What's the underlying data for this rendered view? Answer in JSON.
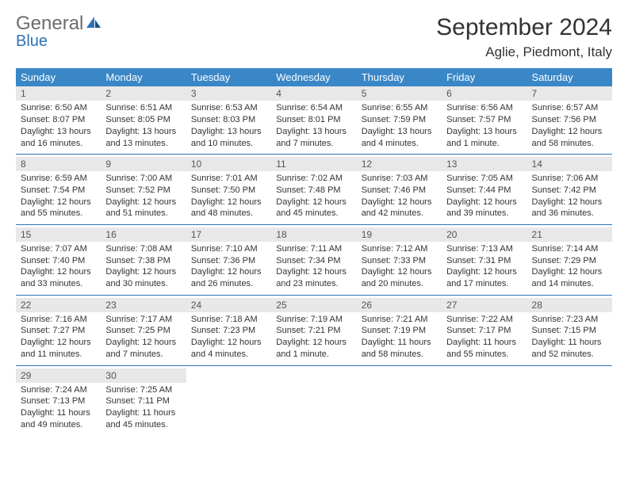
{
  "brand": {
    "general": "General",
    "blue": "Blue"
  },
  "header": {
    "month_title": "September 2024",
    "location": "Aglie, Piedmont, Italy"
  },
  "colors": {
    "header_bg": "#3a87c7",
    "header_fg": "#ffffff",
    "daynum_bg": "#e8e8e8",
    "rule": "#2d72b8",
    "logo_gray": "#6b6b6b",
    "logo_blue": "#2d72b8"
  },
  "weekdays": [
    "Sunday",
    "Monday",
    "Tuesday",
    "Wednesday",
    "Thursday",
    "Friday",
    "Saturday"
  ],
  "weeks": [
    [
      {
        "n": "1",
        "sr": "Sunrise: 6:50 AM",
        "ss": "Sunset: 8:07 PM",
        "d1": "Daylight: 13 hours",
        "d2": "and 16 minutes."
      },
      {
        "n": "2",
        "sr": "Sunrise: 6:51 AM",
        "ss": "Sunset: 8:05 PM",
        "d1": "Daylight: 13 hours",
        "d2": "and 13 minutes."
      },
      {
        "n": "3",
        "sr": "Sunrise: 6:53 AM",
        "ss": "Sunset: 8:03 PM",
        "d1": "Daylight: 13 hours",
        "d2": "and 10 minutes."
      },
      {
        "n": "4",
        "sr": "Sunrise: 6:54 AM",
        "ss": "Sunset: 8:01 PM",
        "d1": "Daylight: 13 hours",
        "d2": "and 7 minutes."
      },
      {
        "n": "5",
        "sr": "Sunrise: 6:55 AM",
        "ss": "Sunset: 7:59 PM",
        "d1": "Daylight: 13 hours",
        "d2": "and 4 minutes."
      },
      {
        "n": "6",
        "sr": "Sunrise: 6:56 AM",
        "ss": "Sunset: 7:57 PM",
        "d1": "Daylight: 13 hours",
        "d2": "and 1 minute."
      },
      {
        "n": "7",
        "sr": "Sunrise: 6:57 AM",
        "ss": "Sunset: 7:56 PM",
        "d1": "Daylight: 12 hours",
        "d2": "and 58 minutes."
      }
    ],
    [
      {
        "n": "8",
        "sr": "Sunrise: 6:59 AM",
        "ss": "Sunset: 7:54 PM",
        "d1": "Daylight: 12 hours",
        "d2": "and 55 minutes."
      },
      {
        "n": "9",
        "sr": "Sunrise: 7:00 AM",
        "ss": "Sunset: 7:52 PM",
        "d1": "Daylight: 12 hours",
        "d2": "and 51 minutes."
      },
      {
        "n": "10",
        "sr": "Sunrise: 7:01 AM",
        "ss": "Sunset: 7:50 PM",
        "d1": "Daylight: 12 hours",
        "d2": "and 48 minutes."
      },
      {
        "n": "11",
        "sr": "Sunrise: 7:02 AM",
        "ss": "Sunset: 7:48 PM",
        "d1": "Daylight: 12 hours",
        "d2": "and 45 minutes."
      },
      {
        "n": "12",
        "sr": "Sunrise: 7:03 AM",
        "ss": "Sunset: 7:46 PM",
        "d1": "Daylight: 12 hours",
        "d2": "and 42 minutes."
      },
      {
        "n": "13",
        "sr": "Sunrise: 7:05 AM",
        "ss": "Sunset: 7:44 PM",
        "d1": "Daylight: 12 hours",
        "d2": "and 39 minutes."
      },
      {
        "n": "14",
        "sr": "Sunrise: 7:06 AM",
        "ss": "Sunset: 7:42 PM",
        "d1": "Daylight: 12 hours",
        "d2": "and 36 minutes."
      }
    ],
    [
      {
        "n": "15",
        "sr": "Sunrise: 7:07 AM",
        "ss": "Sunset: 7:40 PM",
        "d1": "Daylight: 12 hours",
        "d2": "and 33 minutes."
      },
      {
        "n": "16",
        "sr": "Sunrise: 7:08 AM",
        "ss": "Sunset: 7:38 PM",
        "d1": "Daylight: 12 hours",
        "d2": "and 30 minutes."
      },
      {
        "n": "17",
        "sr": "Sunrise: 7:10 AM",
        "ss": "Sunset: 7:36 PM",
        "d1": "Daylight: 12 hours",
        "d2": "and 26 minutes."
      },
      {
        "n": "18",
        "sr": "Sunrise: 7:11 AM",
        "ss": "Sunset: 7:34 PM",
        "d1": "Daylight: 12 hours",
        "d2": "and 23 minutes."
      },
      {
        "n": "19",
        "sr": "Sunrise: 7:12 AM",
        "ss": "Sunset: 7:33 PM",
        "d1": "Daylight: 12 hours",
        "d2": "and 20 minutes."
      },
      {
        "n": "20",
        "sr": "Sunrise: 7:13 AM",
        "ss": "Sunset: 7:31 PM",
        "d1": "Daylight: 12 hours",
        "d2": "and 17 minutes."
      },
      {
        "n": "21",
        "sr": "Sunrise: 7:14 AM",
        "ss": "Sunset: 7:29 PM",
        "d1": "Daylight: 12 hours",
        "d2": "and 14 minutes."
      }
    ],
    [
      {
        "n": "22",
        "sr": "Sunrise: 7:16 AM",
        "ss": "Sunset: 7:27 PM",
        "d1": "Daylight: 12 hours",
        "d2": "and 11 minutes."
      },
      {
        "n": "23",
        "sr": "Sunrise: 7:17 AM",
        "ss": "Sunset: 7:25 PM",
        "d1": "Daylight: 12 hours",
        "d2": "and 7 minutes."
      },
      {
        "n": "24",
        "sr": "Sunrise: 7:18 AM",
        "ss": "Sunset: 7:23 PM",
        "d1": "Daylight: 12 hours",
        "d2": "and 4 minutes."
      },
      {
        "n": "25",
        "sr": "Sunrise: 7:19 AM",
        "ss": "Sunset: 7:21 PM",
        "d1": "Daylight: 12 hours",
        "d2": "and 1 minute."
      },
      {
        "n": "26",
        "sr": "Sunrise: 7:21 AM",
        "ss": "Sunset: 7:19 PM",
        "d1": "Daylight: 11 hours",
        "d2": "and 58 minutes."
      },
      {
        "n": "27",
        "sr": "Sunrise: 7:22 AM",
        "ss": "Sunset: 7:17 PM",
        "d1": "Daylight: 11 hours",
        "d2": "and 55 minutes."
      },
      {
        "n": "28",
        "sr": "Sunrise: 7:23 AM",
        "ss": "Sunset: 7:15 PM",
        "d1": "Daylight: 11 hours",
        "d2": "and 52 minutes."
      }
    ],
    [
      {
        "n": "29",
        "sr": "Sunrise: 7:24 AM",
        "ss": "Sunset: 7:13 PM",
        "d1": "Daylight: 11 hours",
        "d2": "and 49 minutes."
      },
      {
        "n": "30",
        "sr": "Sunrise: 7:25 AM",
        "ss": "Sunset: 7:11 PM",
        "d1": "Daylight: 11 hours",
        "d2": "and 45 minutes."
      },
      null,
      null,
      null,
      null,
      null
    ]
  ]
}
